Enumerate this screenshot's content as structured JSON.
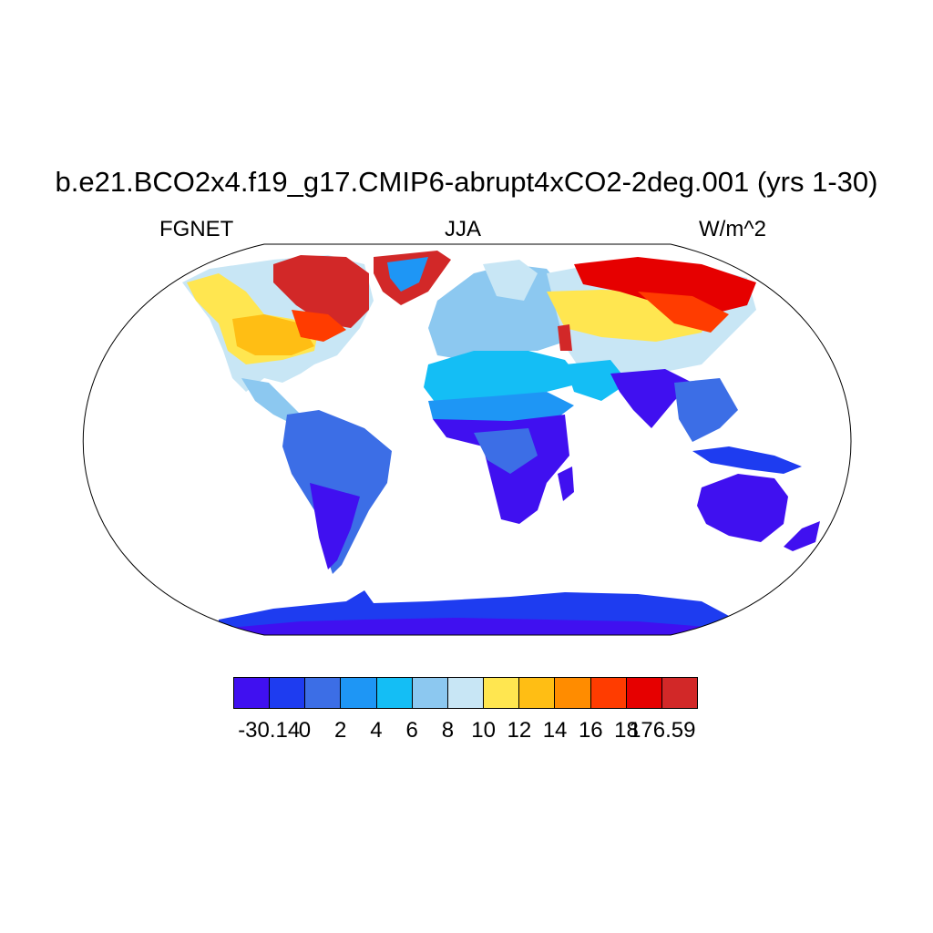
{
  "title": "b.e21.BCO2x4.f19_g17.CMIP6-abrupt4xCO2-2deg.001 (yrs 1-30)",
  "left_label": "FGNET",
  "center_label": "JJA",
  "right_label": "W/m^2",
  "colorbar": {
    "colors": [
      "#4010f0",
      "#1e3cf0",
      "#3c6ee6",
      "#1e96f5",
      "#14bef5",
      "#8cc8f0",
      "#c8e6f5",
      "#ffe650",
      "#ffbe14",
      "#ff8c00",
      "#ff3c00",
      "#e60000",
      "#d22828"
    ],
    "labels": [
      "-30.14",
      "0",
      "2",
      "4",
      "6",
      "8",
      "10",
      "12",
      "14",
      "16",
      "18",
      "176.59"
    ]
  },
  "map": {
    "projection": "Robinson",
    "ocean_color": "#ffffff",
    "regions": [
      {
        "name": "Antarctica",
        "color": "#1e3cf0"
      },
      {
        "name": "Greenland interior",
        "color": "#1e96f5"
      },
      {
        "name": "Canadian Arctic",
        "color": "#d22828"
      },
      {
        "name": "Siberia",
        "color": "#e60000"
      },
      {
        "name": "Central Asia",
        "color": "#ffe650"
      },
      {
        "name": "Europe",
        "color": "#8cc8f0"
      },
      {
        "name": "Sahara",
        "color": "#14bef5"
      },
      {
        "name": "Tropical Africa",
        "color": "#4010f0"
      },
      {
        "name": "South America",
        "color": "#3c6ee6"
      },
      {
        "name": "Australia",
        "color": "#4010f0"
      },
      {
        "name": "India",
        "color": "#4010f0"
      }
    ]
  }
}
